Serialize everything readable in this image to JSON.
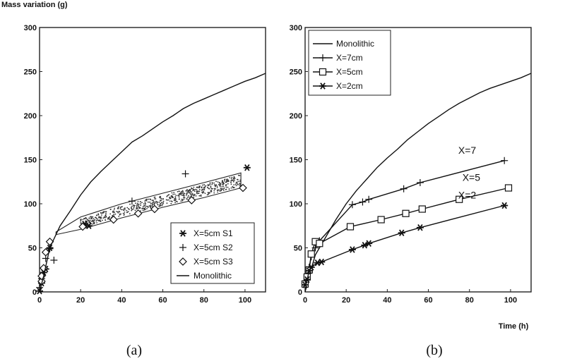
{
  "chart_data": [
    {
      "type": "scatter",
      "panel_label": "(a)",
      "ylabel": "Mass variation (g)",
      "xlabel": "",
      "xlim": [
        0,
        110
      ],
      "ylim": [
        0,
        300
      ],
      "x_ticks": [
        "0",
        "20",
        "40",
        "60",
        "80",
        "100"
      ],
      "y_ticks": [
        "0",
        "50",
        "100",
        "150",
        "200",
        "250",
        "300"
      ],
      "legend_position": "bottom-right",
      "band": {
        "upper": [
          [
            8,
            68
          ],
          [
            20,
            85
          ],
          [
            40,
            100
          ],
          [
            60,
            112
          ],
          [
            80,
            124
          ],
          [
            98,
            135
          ]
        ],
        "lower": [
          [
            8,
            65
          ],
          [
            20,
            71
          ],
          [
            40,
            84
          ],
          [
            60,
            96
          ],
          [
            80,
            107
          ],
          [
            98,
            118
          ]
        ]
      },
      "series": [
        {
          "name": "X=5cm S1",
          "marker": "asterisk",
          "points": [
            [
              0,
              1
            ],
            [
              1,
              10
            ],
            [
              2,
              22
            ],
            [
              3,
              26
            ],
            [
              5,
              50
            ],
            [
              22,
              77
            ],
            [
              24,
              75
            ],
            [
              101,
              141
            ]
          ]
        },
        {
          "name": "X=5cm S2",
          "marker": "plus",
          "points": [
            [
              0,
              5
            ],
            [
              1,
              15
            ],
            [
              3,
              38
            ],
            [
              5,
              49
            ],
            [
              7,
              36
            ],
            [
              45,
              103
            ],
            [
              71,
              134
            ]
          ]
        },
        {
          "name": "X=5cm S3",
          "marker": "diamond",
          "points": [
            [
              1,
              12
            ],
            [
              1,
              18
            ],
            [
              2,
              27
            ],
            [
              3,
              45
            ],
            [
              5,
              57
            ],
            [
              21,
              74
            ],
            [
              36,
              82
            ],
            [
              48,
              89
            ],
            [
              56,
              94
            ],
            [
              74,
              104
            ],
            [
              99,
              118
            ]
          ]
        },
        {
          "name": "Monolithic",
          "marker": "line",
          "points": [
            [
              0,
              0
            ],
            [
              2,
              18
            ],
            [
              5,
              50
            ],
            [
              10,
              75
            ],
            [
              15,
              92
            ],
            [
              20,
              110
            ],
            [
              25,
              125
            ],
            [
              30,
              137
            ],
            [
              35,
              148
            ],
            [
              40,
              159
            ],
            [
              45,
              170
            ],
            [
              50,
              177
            ],
            [
              55,
              185
            ],
            [
              60,
              193
            ],
            [
              65,
              200
            ],
            [
              70,
              208
            ],
            [
              75,
              214
            ],
            [
              80,
              219
            ],
            [
              85,
              224
            ],
            [
              90,
              229
            ],
            [
              95,
              234
            ],
            [
              100,
              239
            ],
            [
              105,
              243
            ],
            [
              110,
              248
            ]
          ]
        }
      ]
    },
    {
      "type": "line",
      "panel_label": "(b)",
      "ylabel": "",
      "xlabel": "Time (h)",
      "xlim": [
        0,
        110
      ],
      "ylim": [
        0,
        300
      ],
      "x_ticks": [
        "0",
        "20",
        "40",
        "60",
        "80",
        "100"
      ],
      "y_ticks": [
        "0",
        "50",
        "100",
        "150",
        "200",
        "250",
        "300"
      ],
      "legend_position": "top-left",
      "series": [
        {
          "name": "Monolithic",
          "marker": "none",
          "points": [
            [
              0,
              0
            ],
            [
              2,
              18
            ],
            [
              5,
              42
            ],
            [
              10,
              62
            ],
            [
              15,
              82
            ],
            [
              20,
              100
            ],
            [
              25,
              115
            ],
            [
              30,
              128
            ],
            [
              35,
              141
            ],
            [
              40,
              152
            ],
            [
              45,
              162
            ],
            [
              50,
              173
            ],
            [
              55,
              182
            ],
            [
              60,
              191
            ],
            [
              65,
              199
            ],
            [
              70,
              207
            ],
            [
              75,
              214
            ],
            [
              80,
              220
            ],
            [
              85,
              226
            ],
            [
              90,
              231
            ],
            [
              95,
              235
            ],
            [
              100,
              239
            ],
            [
              105,
              243
            ],
            [
              110,
              248
            ]
          ]
        },
        {
          "name": "X=7cm",
          "marker": "plus",
          "points": [
            [
              0,
              8
            ],
            [
              1,
              18
            ],
            [
              2,
              28
            ],
            [
              3,
              40
            ],
            [
              5,
              50
            ],
            [
              7,
              58
            ],
            [
              23,
              99
            ],
            [
              28,
              102
            ],
            [
              31,
              105
            ],
            [
              48,
              117
            ],
            [
              56,
              124
            ],
            [
              97,
              149
            ]
          ],
          "annotation": "X=7"
        },
        {
          "name": "X=5cm",
          "marker": "square",
          "points": [
            [
              0,
              9
            ],
            [
              1,
              17
            ],
            [
              2,
              25
            ],
            [
              3,
              43
            ],
            [
              5,
              57
            ],
            [
              7,
              55
            ],
            [
              22,
              74
            ],
            [
              37,
              82
            ],
            [
              49,
              89
            ],
            [
              57,
              94
            ],
            [
              75,
              105
            ],
            [
              99,
              118
            ]
          ],
          "annotation": "X=5"
        },
        {
          "name": "X=2cm",
          "marker": "asterisk",
          "points": [
            [
              0,
              8
            ],
            [
              1,
              14
            ],
            [
              2,
              24
            ],
            [
              3,
              28
            ],
            [
              6,
              33
            ],
            [
              8,
              34
            ],
            [
              23,
              48
            ],
            [
              29,
              53
            ],
            [
              31,
              55
            ],
            [
              47,
              67
            ],
            [
              56,
              73
            ],
            [
              97,
              98
            ]
          ],
          "annotation": "X=2"
        }
      ]
    }
  ]
}
